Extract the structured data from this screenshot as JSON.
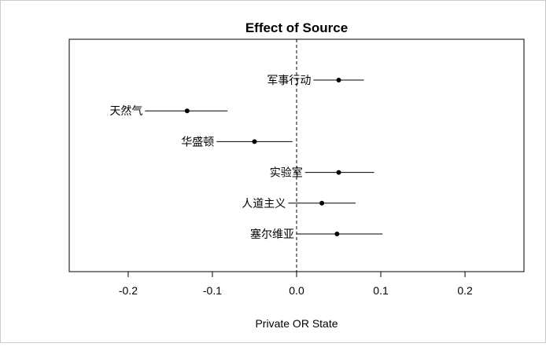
{
  "chart_data": {
    "type": "scatter",
    "title": "Effect of Source",
    "xlabel": "Private OR State",
    "ylabel": "",
    "xlim": [
      -0.27,
      0.27
    ],
    "x_ticks": [
      -0.2,
      -0.1,
      0.0,
      0.1,
      0.2
    ],
    "x_tick_labels": [
      "-0.2",
      "-0.1",
      "0.0",
      "0.1",
      "0.2"
    ],
    "reference_line": {
      "x": 0.0,
      "style": "dashed"
    },
    "grid": false,
    "legend": "none",
    "points": [
      {
        "label": "军事行动",
        "estimate": 0.05,
        "ci_low": 0.02,
        "ci_high": 0.08
      },
      {
        "label": "天然气",
        "estimate": -0.13,
        "ci_low": -0.18,
        "ci_high": -0.082
      },
      {
        "label": "华盛顿",
        "estimate": -0.05,
        "ci_low": -0.095,
        "ci_high": -0.005
      },
      {
        "label": "实验室",
        "estimate": 0.05,
        "ci_low": 0.01,
        "ci_high": 0.092
      },
      {
        "label": "人道主义",
        "estimate": 0.03,
        "ci_low": -0.01,
        "ci_high": 0.07
      },
      {
        "label": "塞尔维亚",
        "estimate": 0.048,
        "ci_low": 0.0,
        "ci_high": 0.102
      }
    ],
    "colors": {
      "points": "#000000",
      "frame": "#000000",
      "outer_border": "#cccccc"
    }
  }
}
